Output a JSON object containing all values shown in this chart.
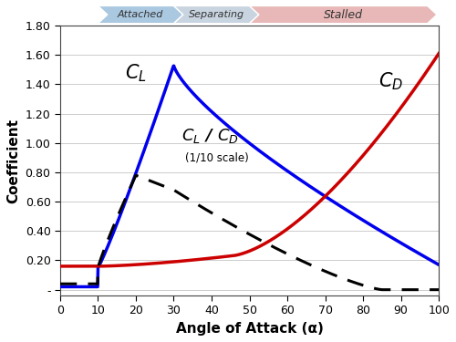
{
  "title": "",
  "xlabel": "Angle of Attack (α)",
  "ylabel": "Coefficient",
  "xlim": [
    0,
    100
  ],
  "ylim_bottom": -0.04,
  "ylim_top": 1.8,
  "yticks": [
    0.0,
    0.2,
    0.4,
    0.6,
    0.8,
    1.0,
    1.2,
    1.4,
    1.6,
    1.8
  ],
  "ytick_labels": [
    "-",
    "0.20",
    "0.40",
    "0.60",
    "0.80",
    "1.00",
    "1.20",
    "1.40",
    "1.60",
    "1.80"
  ],
  "xticks": [
    0,
    10,
    20,
    30,
    40,
    50,
    60,
    70,
    80,
    90,
    100
  ],
  "background_color": "#ffffff",
  "plot_bg": "#ffffff",
  "CL_color": "#0000ee",
  "CD_color": "#cc0000",
  "ratio_color": "#000000",
  "arrow_attached_color": "#aac8e0",
  "arrow_separating_color": "#c8d4e0",
  "arrow_stalled_color": "#e8b8b8",
  "grid_color": "#cccccc"
}
